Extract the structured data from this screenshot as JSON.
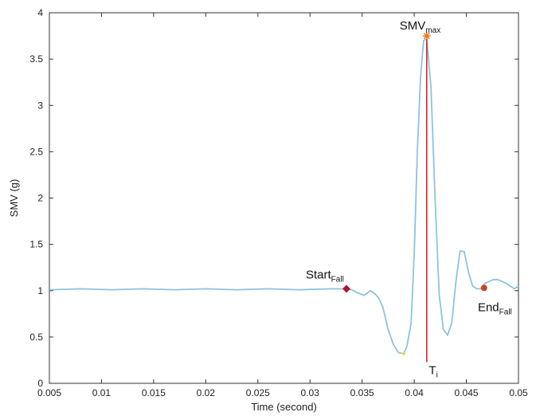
{
  "chart_data": {
    "type": "line",
    "title": "",
    "xlabel": "Time (second)",
    "ylabel": "SMV (g)",
    "xlim": [
      0.005,
      0.05
    ],
    "ylim": [
      0,
      4
    ],
    "x_ticks": [
      0.005,
      0.01,
      0.015,
      0.02,
      0.025,
      0.03,
      0.035,
      0.04,
      0.045,
      0.05
    ],
    "x_tick_labels": [
      "0.005",
      "0.01",
      "0.015",
      "0.02",
      "0.025",
      "0.03",
      "0.035",
      "0.04",
      "0.045",
      "0.05"
    ],
    "y_ticks": [
      0,
      0.5,
      1,
      1.5,
      2,
      2.5,
      3,
      3.5,
      4
    ],
    "y_tick_labels": [
      "0",
      "0.5",
      "1",
      "1.5",
      "2",
      "2.5",
      "3",
      "3.5",
      "4"
    ],
    "grid": false,
    "series": [
      {
        "color": "#8cc4de",
        "x": [
          0.005,
          0.008,
          0.011,
          0.014,
          0.017,
          0.02,
          0.023,
          0.026,
          0.029,
          0.032,
          0.033,
          0.0335,
          0.034,
          0.0345,
          0.0352,
          0.0358,
          0.0362,
          0.0366,
          0.037,
          0.0375,
          0.038,
          0.0385,
          0.039,
          0.0393,
          0.0397,
          0.04,
          0.0403,
          0.0406,
          0.0409,
          0.0412,
          0.0416,
          0.042,
          0.0424,
          0.0428,
          0.0432,
          0.0436,
          0.044,
          0.0444,
          0.0448,
          0.0452,
          0.0456,
          0.046,
          0.0464,
          0.0468,
          0.0472,
          0.0476,
          0.048,
          0.0484,
          0.0488,
          0.0492,
          0.0496,
          0.05
        ],
        "y": [
          1.01,
          1.02,
          1.01,
          1.02,
          1.01,
          1.02,
          1.01,
          1.02,
          1.01,
          1.02,
          1.02,
          1.02,
          1.01,
          0.98,
          0.95,
          1.0,
          0.97,
          0.92,
          0.82,
          0.58,
          0.42,
          0.33,
          0.32,
          0.4,
          0.65,
          1.4,
          2.5,
          3.3,
          3.7,
          3.72,
          3.2,
          2.0,
          0.95,
          0.58,
          0.52,
          0.65,
          1.1,
          1.43,
          1.42,
          1.2,
          1.05,
          1.02,
          1.02,
          1.08,
          1.1,
          1.12,
          1.12,
          1.1,
          1.08,
          1.05,
          1.02,
          1.05
        ]
      },
      {
        "color": "#e0202a",
        "x": [
          0.0412,
          0.0412
        ],
        "y": [
          3.72,
          0.23
        ]
      }
    ],
    "markers": [
      {
        "x": 0.0412,
        "y": 3.75,
        "symbol": "star",
        "color": "#e87a2a"
      },
      {
        "x": 0.0335,
        "y": 1.02,
        "symbol": "diamond",
        "color": "#b0162a"
      },
      {
        "x": 0.0467,
        "y": 1.03,
        "symbol": "circle",
        "color": "#c0482a"
      },
      {
        "x": 0.039,
        "y": 0.32,
        "symbol": "dot",
        "color": "#f2d45a"
      }
    ],
    "annotations": [
      {
        "main": "SMV",
        "sub": "max",
        "x": 0.0386,
        "y": 3.82
      },
      {
        "main": "Start",
        "sub": "Fall",
        "x": 0.0296,
        "y": 1.13
      },
      {
        "main": "End",
        "sub": "Fall",
        "x": 0.0461,
        "y": 0.78
      },
      {
        "main": "T",
        "sub": "i",
        "x": 0.0414,
        "y": 0.1
      }
    ]
  }
}
